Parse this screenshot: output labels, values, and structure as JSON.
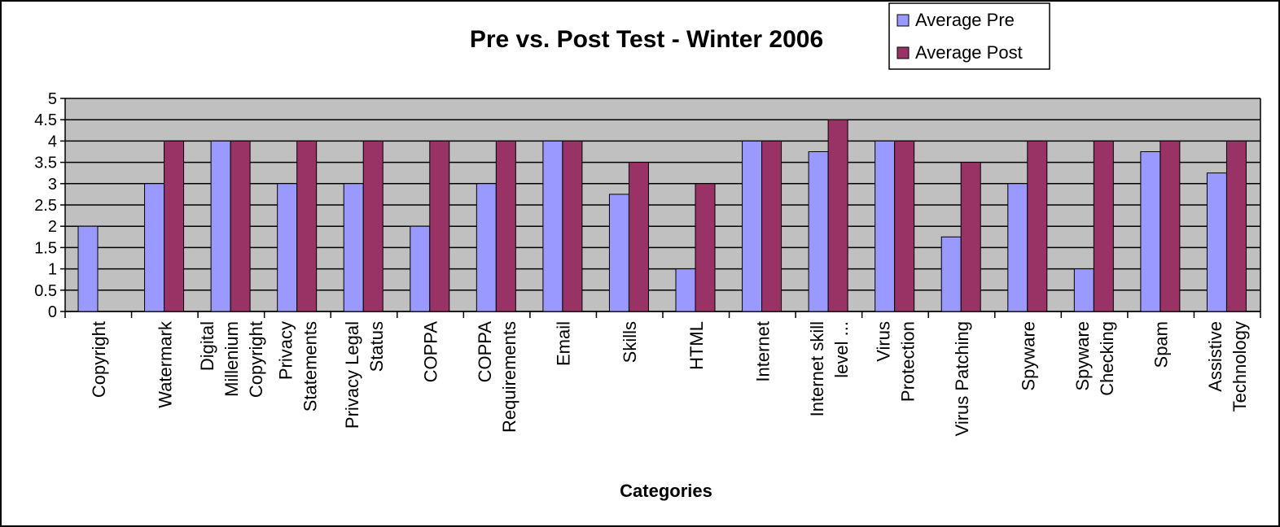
{
  "chart_data": {
    "type": "bar",
    "title": "Pre vs. Post Test - Winter 2006",
    "xlabel": "Categories",
    "ylabel": "",
    "ylim": [
      0,
      5
    ],
    "yticks": [
      "0",
      "0.5",
      "1",
      "1.5",
      "2",
      "2.5",
      "3",
      "3.5",
      "4",
      "4.5",
      "5"
    ],
    "grid": true,
    "legend_position": "top-right",
    "categories": [
      [
        "Copyright"
      ],
      [
        "Watermark"
      ],
      [
        "Digital",
        "Millenium",
        "Copyright"
      ],
      [
        "Privacy",
        "Statements"
      ],
      [
        "Privacy Legal",
        "Status"
      ],
      [
        "COPPA"
      ],
      [
        "COPPA",
        "Requirements"
      ],
      [
        "Email"
      ],
      [
        "Skills"
      ],
      [
        "HTML"
      ],
      [
        "Internet"
      ],
      [
        "Internet skill",
        "level ..."
      ],
      [
        "Virus",
        "Protection"
      ],
      [
        "Virus Patching"
      ],
      [
        "Spyware"
      ],
      [
        "Spyware",
        "Checking"
      ],
      [
        "Spam"
      ],
      [
        "Assistive",
        "Technology"
      ]
    ],
    "series": [
      {
        "name": "Average Pre",
        "color": "#9999ff",
        "values": [
          2,
          3,
          4,
          3,
          3,
          2,
          3,
          4,
          2.75,
          1,
          4,
          3.75,
          4,
          1.75,
          3,
          1,
          3.75,
          3.25
        ]
      },
      {
        "name": "Average Post",
        "color": "#993366",
        "values": [
          0,
          4,
          4,
          4,
          4,
          4,
          4,
          4,
          3.5,
          3,
          4,
          4.5,
          4,
          3.5,
          4,
          4,
          4,
          4
        ]
      }
    ],
    "plot_background": "#c0c0c0"
  }
}
